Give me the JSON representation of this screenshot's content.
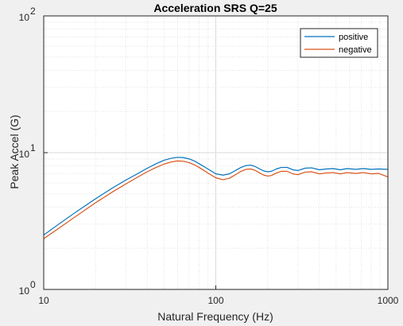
{
  "chart_data": {
    "type": "line",
    "title": "Acceleration SRS Q=25",
    "xlabel": "Natural Frequency (Hz)",
    "ylabel": "Peak Accel (G)",
    "xscale": "log",
    "yscale": "log",
    "xlim": [
      10,
      1000
    ],
    "ylim": [
      1,
      100
    ],
    "grid": true,
    "minor_grid": true,
    "legend_placement": "top-right",
    "x_ticks": [
      {
        "value": 10,
        "base": "10",
        "exp": ""
      },
      {
        "value": 100,
        "base": "100",
        "exp": ""
      },
      {
        "value": 1000,
        "base": "1000",
        "exp": ""
      }
    ],
    "y_ticks": [
      {
        "value": 1,
        "base": "10",
        "exp": "0"
      },
      {
        "value": 10,
        "base": "10",
        "exp": "1"
      },
      {
        "value": 100,
        "base": "10",
        "exp": "2"
      }
    ],
    "series": [
      {
        "name": "positive",
        "color": "#0072bd",
        "points": [
          [
            10,
            2.5
          ],
          [
            12,
            2.95
          ],
          [
            15,
            3.6
          ],
          [
            20,
            4.6
          ],
          [
            25,
            5.5
          ],
          [
            30,
            6.3
          ],
          [
            35,
            7.0
          ],
          [
            40,
            7.7
          ],
          [
            45,
            8.3
          ],
          [
            50,
            8.8
          ],
          [
            55,
            9.1
          ],
          [
            60,
            9.25
          ],
          [
            65,
            9.2
          ],
          [
            70,
            9.0
          ],
          [
            75,
            8.7
          ],
          [
            80,
            8.3
          ],
          [
            90,
            7.6
          ],
          [
            100,
            7.0
          ],
          [
            110,
            6.85
          ],
          [
            120,
            7.0
          ],
          [
            130,
            7.4
          ],
          [
            140,
            7.8
          ],
          [
            150,
            8.05
          ],
          [
            160,
            8.1
          ],
          [
            170,
            7.9
          ],
          [
            180,
            7.6
          ],
          [
            190,
            7.35
          ],
          [
            200,
            7.25
          ],
          [
            210,
            7.3
          ],
          [
            225,
            7.6
          ],
          [
            240,
            7.8
          ],
          [
            260,
            7.8
          ],
          [
            280,
            7.5
          ],
          [
            300,
            7.4
          ],
          [
            330,
            7.7
          ],
          [
            360,
            7.75
          ],
          [
            400,
            7.5
          ],
          [
            440,
            7.6
          ],
          [
            480,
            7.65
          ],
          [
            530,
            7.5
          ],
          [
            580,
            7.65
          ],
          [
            650,
            7.55
          ],
          [
            720,
            7.65
          ],
          [
            800,
            7.55
          ],
          [
            880,
            7.6
          ],
          [
            1000,
            7.55
          ]
        ]
      },
      {
        "name": "negative",
        "color": "#d95319",
        "points": [
          [
            10,
            2.35
          ],
          [
            12,
            2.75
          ],
          [
            15,
            3.35
          ],
          [
            20,
            4.3
          ],
          [
            25,
            5.15
          ],
          [
            30,
            5.9
          ],
          [
            35,
            6.6
          ],
          [
            40,
            7.25
          ],
          [
            45,
            7.8
          ],
          [
            50,
            8.25
          ],
          [
            55,
            8.55
          ],
          [
            60,
            8.7
          ],
          [
            65,
            8.65
          ],
          [
            70,
            8.45
          ],
          [
            75,
            8.15
          ],
          [
            80,
            7.8
          ],
          [
            90,
            7.1
          ],
          [
            100,
            6.55
          ],
          [
            110,
            6.35
          ],
          [
            120,
            6.5
          ],
          [
            130,
            6.9
          ],
          [
            140,
            7.3
          ],
          [
            150,
            7.55
          ],
          [
            160,
            7.6
          ],
          [
            170,
            7.4
          ],
          [
            180,
            7.1
          ],
          [
            190,
            6.85
          ],
          [
            200,
            6.75
          ],
          [
            210,
            6.8
          ],
          [
            225,
            7.1
          ],
          [
            240,
            7.3
          ],
          [
            260,
            7.3
          ],
          [
            280,
            7.0
          ],
          [
            300,
            6.9
          ],
          [
            330,
            7.2
          ],
          [
            360,
            7.25
          ],
          [
            400,
            7.0
          ],
          [
            440,
            7.1
          ],
          [
            480,
            7.15
          ],
          [
            530,
            7.0
          ],
          [
            580,
            7.15
          ],
          [
            650,
            7.05
          ],
          [
            720,
            7.15
          ],
          [
            800,
            7.0
          ],
          [
            880,
            7.05
          ],
          [
            1000,
            6.65
          ]
        ]
      }
    ]
  }
}
